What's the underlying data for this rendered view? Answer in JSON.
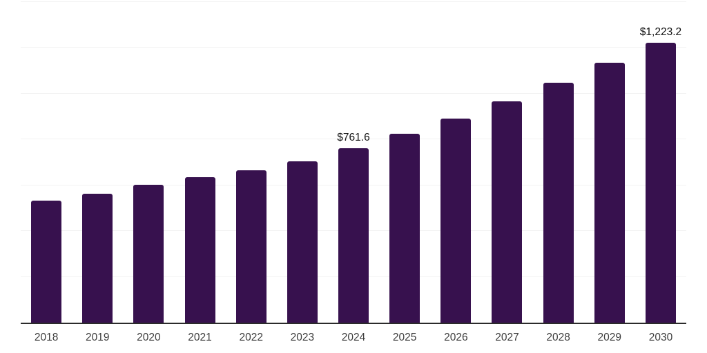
{
  "chart_data": {
    "type": "bar",
    "title": "",
    "xlabel": "",
    "ylabel": "",
    "categories": [
      "2018",
      "2019",
      "2020",
      "2021",
      "2022",
      "2023",
      "2024",
      "2025",
      "2026",
      "2027",
      "2028",
      "2029",
      "2030"
    ],
    "values": [
      534,
      562,
      601,
      635,
      666,
      705,
      761.6,
      825,
      892,
      967,
      1049,
      1135,
      1223.2
    ],
    "annotations": [
      {
        "index": 6,
        "text": "$761.6"
      },
      {
        "index": 12,
        "text": "$1,223.2"
      }
    ],
    "ylim": [
      0,
      1400
    ],
    "gridline_step": 200,
    "grid": "horizontal",
    "legend": "none",
    "y_axis_labels_visible": false
  },
  "colors": {
    "background": "#ffffff",
    "bar": "#37114e",
    "axis_line": "#2b2b2b",
    "gridline": "#f2f2f2",
    "annotation_text": "#111111",
    "tick_text": "#3e3e3e"
  }
}
